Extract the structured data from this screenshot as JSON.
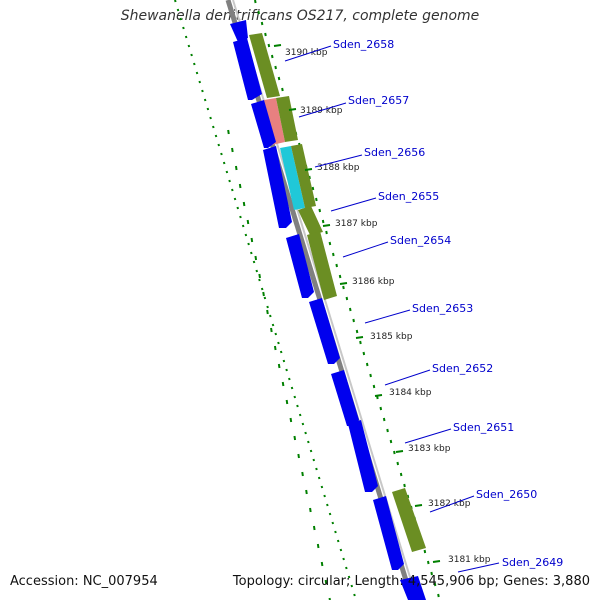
{
  "title": "Shewanella denitrificans OS217, complete genome",
  "accession_text": "Accession: NC_007954",
  "summary_text": "Topology: circular; Length: 4,545,906 bp; Genes: 3,880",
  "colors": {
    "cds": "#0000ee",
    "cog_olive": "#6b8e23",
    "cog_pink": "#e88080",
    "cog_cyan": "#20c8d8",
    "backbone": "#808080",
    "gc_skew": "#008000",
    "label": "#0000cc"
  },
  "genes": [
    {
      "label": "Sden_2658"
    },
    {
      "label": "Sden_2657"
    },
    {
      "label": "Sden_2656"
    },
    {
      "label": "Sden_2655"
    },
    {
      "label": "Sden_2654"
    },
    {
      "label": "Sden_2653"
    },
    {
      "label": "Sden_2652"
    },
    {
      "label": "Sden_2651"
    },
    {
      "label": "Sden_2650"
    },
    {
      "label": "Sden_2649"
    }
  ],
  "kbp_ticks": [
    {
      "label": "3190 kbp"
    },
    {
      "label": "3189 kbp"
    },
    {
      "label": "3188 kbp"
    },
    {
      "label": "3187 kbp"
    },
    {
      "label": "3186 kbp"
    },
    {
      "label": "3185 kbp"
    },
    {
      "label": "3184 kbp"
    },
    {
      "label": "3183 kbp"
    },
    {
      "label": "3182 kbp"
    },
    {
      "label": "3181 kbp"
    }
  ]
}
